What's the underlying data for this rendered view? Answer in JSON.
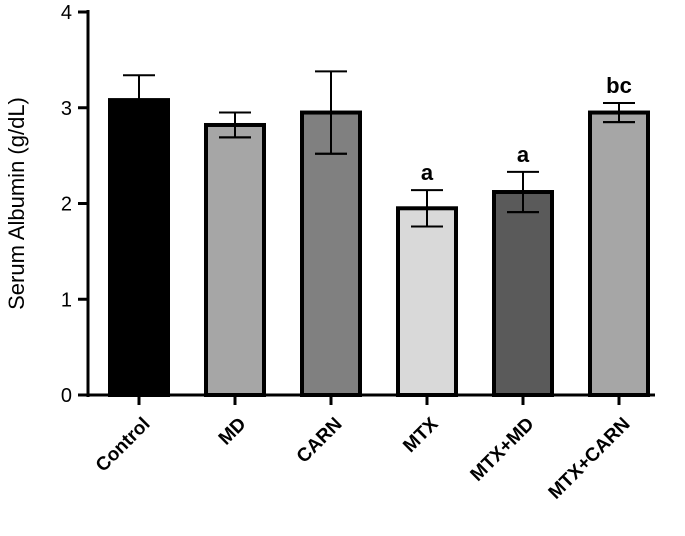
{
  "chart_data": {
    "type": "bar",
    "title": "",
    "xlabel": "",
    "ylabel": "Serum Albumin (g/dL)",
    "ylim": [
      0,
      4
    ],
    "yticks": [
      "0",
      "1",
      "2",
      "3",
      "4"
    ],
    "grid": false,
    "categories": [
      "Control",
      "MD",
      "CARN",
      "MTX",
      "MTX+MD",
      "MTX+CARN"
    ],
    "values": [
      3.08,
      2.82,
      2.95,
      1.95,
      2.12,
      2.95
    ],
    "errors": [
      0.26,
      0.13,
      0.43,
      0.19,
      0.21,
      0.1
    ],
    "significance": [
      "",
      "",
      "",
      "a",
      "a",
      "bc"
    ],
    "colors": {
      "Control": "#000000",
      "MD": "#a6a6a6",
      "CARN": "#808080",
      "MTX": "#d9d9d9",
      "MTX+MD": "#5a5a5a",
      "MTX+CARN": "#a6a6a6"
    }
  }
}
